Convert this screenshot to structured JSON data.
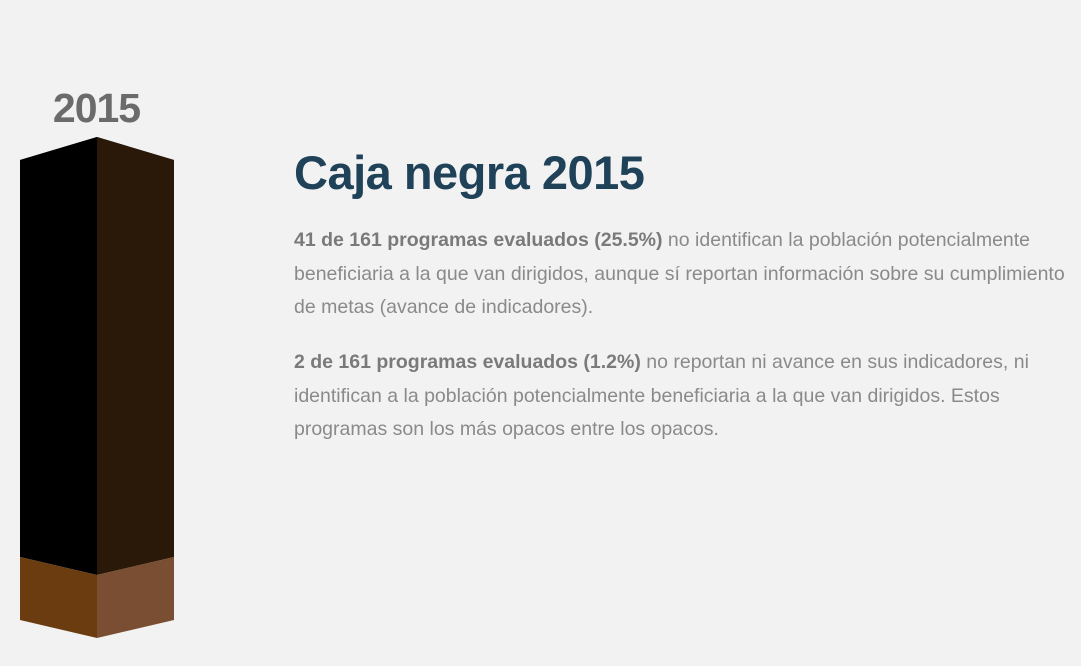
{
  "column": {
    "year": "2015",
    "fill_fraction": 0.14,
    "colors": {
      "top_face": "#000000",
      "front_dark": "#000000",
      "side_dark": "#2a1908",
      "front_fill": "#6a3c10",
      "side_fill": "#7a4e32"
    }
  },
  "content": {
    "title": "Caja negra 2015",
    "paragraph1": {
      "bold": "41 de 161 programas evaluados (25.5%)",
      "text": " no identifican la población potencialmente beneficiaria a la que van dirigidos, aunque sí reportan información sobre su cumplimiento de metas (avance de indicadores)."
    },
    "paragraph2": {
      "bold": "2 de 161 programas evaluados (1.2%)",
      "text": " no reportan ni avance en sus indicadores, ni identifican a la población potencialmente beneficiaria a la que van dirigidos. Estos programas son los más opacos entre los opacos."
    }
  }
}
